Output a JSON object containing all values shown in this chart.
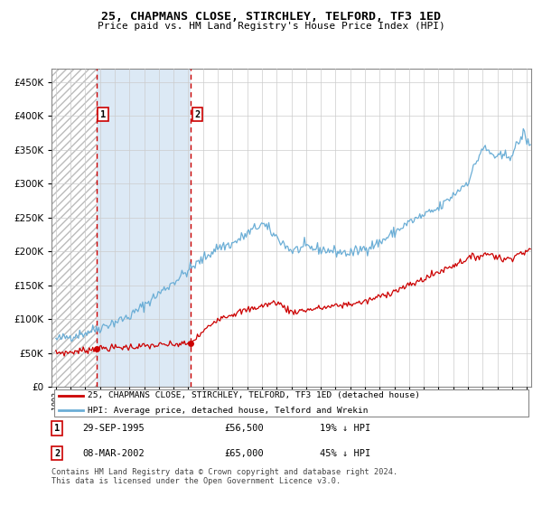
{
  "title": "25, CHAPMANS CLOSE, STIRCHLEY, TELFORD, TF3 1ED",
  "subtitle": "Price paid vs. HM Land Registry's House Price Index (HPI)",
  "ylabel_ticks": [
    "£0",
    "£50K",
    "£100K",
    "£150K",
    "£200K",
    "£250K",
    "£300K",
    "£350K",
    "£400K",
    "£450K"
  ],
  "ytick_values": [
    0,
    50000,
    100000,
    150000,
    200000,
    250000,
    300000,
    350000,
    400000,
    450000
  ],
  "ylim": [
    0,
    470000
  ],
  "xlim_start": 1992.7,
  "xlim_end": 2025.3,
  "hpi_color": "#6baed6",
  "price_color": "#cc0000",
  "sale1_date": 1995.75,
  "sale1_value": 56500,
  "sale2_date": 2002.18,
  "sale2_value": 65000,
  "legend_label1": "25, CHAPMANS CLOSE, STIRCHLEY, TELFORD, TF3 1ED (detached house)",
  "legend_label2": "HPI: Average price, detached house, Telford and Wrekin",
  "annotation1_date": "29-SEP-1995",
  "annotation1_price": "£56,500",
  "annotation1_hpi": "19% ↓ HPI",
  "annotation2_date": "08-MAR-2002",
  "annotation2_price": "£65,000",
  "annotation2_hpi": "45% ↓ HPI",
  "footer": "Contains HM Land Registry data © Crown copyright and database right 2024.\nThis data is licensed under the Open Government Licence v3.0.",
  "grid_color": "#cccccc",
  "hatch_end": 1995.75,
  "shade_start": 1995.75,
  "shade_end": 2002.18,
  "shade_color": "#dce9f5"
}
